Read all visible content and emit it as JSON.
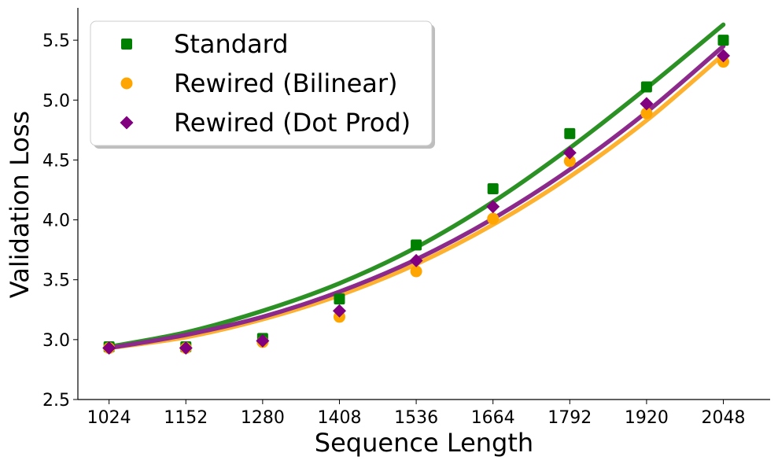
{
  "chart_data": {
    "type": "scatter",
    "title": "",
    "xlabel": "Sequence Length",
    "ylabel": "Validation Loss",
    "xlim": [
      972,
      2126
    ],
    "ylim": [
      2.5,
      5.77
    ],
    "xticks": [
      "1024",
      "1152",
      "1280",
      "1408",
      "1536",
      "1664",
      "1792",
      "1920",
      "2048"
    ],
    "yticks": [
      "2.5",
      "3.0",
      "3.5",
      "4.0",
      "4.5",
      "5.0",
      "5.5"
    ],
    "x": [
      1024,
      1152,
      1280,
      1408,
      1536,
      1664,
      1792,
      1920,
      2048
    ],
    "legend_position": "top-left",
    "grid": false,
    "series": [
      {
        "name": "Standard",
        "marker": "square",
        "color": "#008000",
        "fit_color": "#2b9124",
        "values": [
          2.94,
          2.94,
          3.01,
          3.34,
          3.79,
          4.26,
          4.72,
          5.11,
          5.5
        ],
        "fit": [
          2.94,
          3.06,
          3.24,
          3.47,
          3.77,
          4.15,
          4.6,
          5.1,
          5.63
        ]
      },
      {
        "name": "Rewired (Bilinear)",
        "marker": "circle",
        "color": "#ffa500",
        "fit_color": "#fdb12e",
        "values": [
          2.93,
          2.93,
          2.98,
          3.19,
          3.57,
          4.01,
          4.49,
          4.89,
          5.32
        ],
        "fit": [
          2.93,
          3.02,
          3.17,
          3.37,
          3.63,
          3.96,
          4.36,
          4.83,
          5.38
        ]
      },
      {
        "name": "Rewired (Dot Prod)",
        "marker": "diamond",
        "color": "#800080",
        "fit_color": "#8c2a8c",
        "values": [
          2.93,
          2.93,
          2.99,
          3.24,
          3.66,
          4.11,
          4.56,
          4.97,
          5.37
        ],
        "fit": [
          2.93,
          3.04,
          3.19,
          3.4,
          3.67,
          4.01,
          4.42,
          4.9,
          5.45
        ]
      }
    ]
  }
}
